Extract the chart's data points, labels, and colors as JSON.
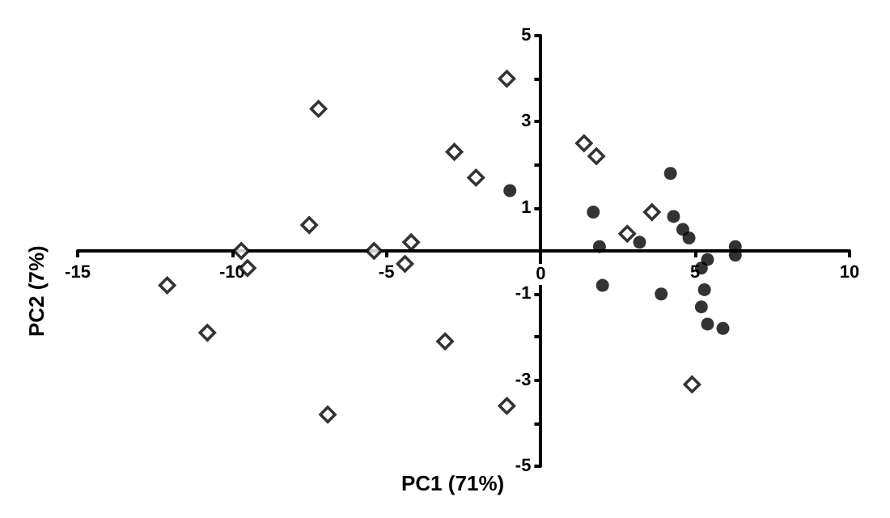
{
  "chart_data": {
    "type": "scatter",
    "xlabel": "PC1 (71%)",
    "ylabel": "PC2 (7%)",
    "xlim": [
      -15,
      10
    ],
    "xticks": [
      -15,
      -10,
      -5,
      0,
      5,
      10
    ],
    "ylim": [
      -5,
      5
    ],
    "yticks": [
      -5,
      {
        "value": -4,
        "label": null
      },
      -3,
      {
        "value": -2,
        "label": null
      },
      -1,
      {
        "value": 0,
        "label": null
      },
      1,
      {
        "value": 2,
        "label": null
      },
      3,
      {
        "value": 4,
        "label": null
      },
      5
    ],
    "grid": false,
    "series": [
      {
        "color": "#000000",
        "marker": "diamond",
        "x": [
          -12.1,
          -10.8,
          -9.7,
          -9.5,
          -7.2,
          -7.5,
          -6.9,
          -5.4,
          -4.4,
          -4.2,
          -3.1,
          -2.8,
          -2.1,
          -1.1,
          -1.1,
          1.4,
          1.8,
          2.8,
          3.6,
          4.9
        ],
        "values": [
          -0.8,
          -1.9,
          0.0,
          -0.4,
          3.3,
          0.6,
          -3.8,
          0.0,
          -0.3,
          0.2,
          -2.1,
          2.3,
          1.7,
          4.0,
          -3.6,
          2.5,
          2.2,
          0.4,
          0.9,
          -3.1
        ]
      },
      {
        "color": "#000000",
        "marker": "circle",
        "x": [
          -1.0,
          1.7,
          1.9,
          2.0,
          3.2,
          4.2,
          4.3,
          3.9,
          4.6,
          4.8,
          5.4,
          5.2,
          5.3,
          5.2,
          5.4,
          5.9,
          6.3,
          6.3
        ],
        "values": [
          1.4,
          0.9,
          0.1,
          -0.8,
          0.2,
          1.8,
          0.8,
          -1.0,
          0.5,
          0.3,
          -0.2,
          -0.4,
          -0.9,
          -1.3,
          -1.7,
          -1.8,
          0.1,
          -0.1
        ]
      }
    ]
  }
}
